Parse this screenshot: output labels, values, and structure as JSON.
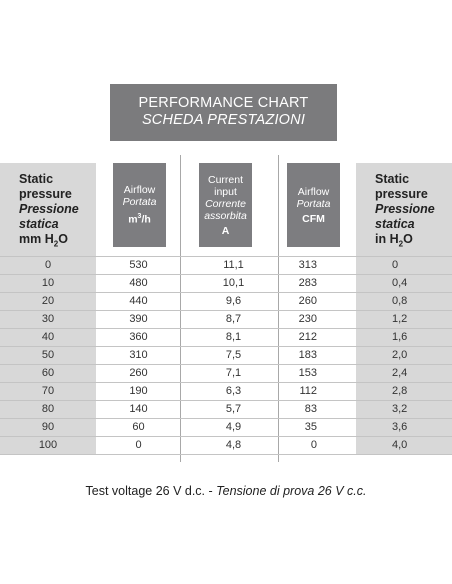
{
  "title": {
    "line1": "PERFORMANCE CHART",
    "line2": "SCHEDA PRESTAZIONI"
  },
  "left_header": {
    "l1": "Static",
    "l2": "pressure",
    "l3": "Pressione",
    "l4": "statica",
    "l5_pre": "mm H",
    "l5_sub": "2",
    "l5_post": "O"
  },
  "right_header": {
    "l1": "Static",
    "l2": "pressure",
    "l3": "Pressione",
    "l4": "statica",
    "l5_pre": "in H",
    "l5_sub": "2",
    "l5_post": "O"
  },
  "col_airflow_m3h": {
    "l1": "Airflow",
    "l2": "Portata",
    "unit_pre": "m",
    "unit_sup": "3",
    "unit_post": "/h"
  },
  "col_current": {
    "l1": "Current",
    "l2": "input",
    "l3": "Corrente",
    "l4": "assorbita",
    "unit": "A"
  },
  "col_airflow_cfm": {
    "l1": "Airflow",
    "l2": "Portata",
    "unit": "CFM"
  },
  "rows": [
    [
      "0",
      "530",
      "11,1",
      "313",
      "0"
    ],
    [
      "10",
      "480",
      "10,1",
      "283",
      "0,4"
    ],
    [
      "20",
      "440",
      "9,6",
      "260",
      "0,8"
    ],
    [
      "30",
      "390",
      "8,7",
      "230",
      "1,2"
    ],
    [
      "40",
      "360",
      "8,1",
      "212",
      "1,6"
    ],
    [
      "50",
      "310",
      "7,5",
      "183",
      "2,0"
    ],
    [
      "60",
      "260",
      "7,1",
      "153",
      "2,4"
    ],
    [
      "70",
      "190",
      "6,3",
      "112",
      "2,8"
    ],
    [
      "80",
      "140",
      "5,7",
      "83",
      "3,2"
    ],
    [
      "90",
      "60",
      "4,9",
      "35",
      "3,6"
    ],
    [
      "100",
      "0",
      "4,8",
      "0",
      "4,0"
    ]
  ],
  "footer": {
    "normal": "Test voltage 26 V d.c. - ",
    "italic": "Tensione di prova 26 V c.c."
  }
}
